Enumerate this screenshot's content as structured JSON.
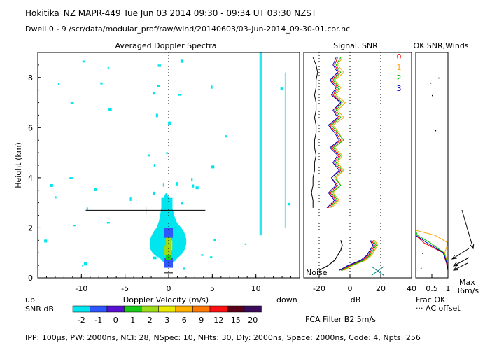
{
  "header": {
    "line1": "Hokitika_NZ   MAPR-449   Tue Jun 03 2014 09:30  -  09:34 UT 03:30 NZST",
    "line2": "Dwell   0  -   9    /scr/data/modular_prof/raw/wind/20140603/03-Jun-2014_09-30-01.cor.nc"
  },
  "footer": {
    "filter": "FCA Filter B2   5m/s",
    "params": "IPP: 100μs,   PW: 2000ns,   NCI:  28,   NSpec: 10,  NHts: 30,   Dly: 2000ns,   Space: 2000ns,   Code: 4,   Npts: 256"
  },
  "colorbar": {
    "label": "SNR dB",
    "labels": [
      "-2",
      "-1",
      "0",
      "1",
      "2",
      "3",
      "6",
      "9",
      "12",
      "15",
      "20"
    ],
    "colors": [
      "#00e5ee",
      "#2f55ff",
      "#5a10d0",
      "#19cc19",
      "#9cdc19",
      "#e8e800",
      "#ffb000",
      "#ff7800",
      "#ff1010",
      "#5a0018",
      "#3c0c5c"
    ]
  },
  "colors": {
    "signal": "#000000",
    "dwell1": "#ff0000",
    "dwell2": "#ffa500",
    "dwell3": "#00c000",
    "dwell4": "#0000c0",
    "spectrum": "#00e5ee"
  },
  "chart_data": [
    {
      "type": "heatmap",
      "title": "Averaged Doppler Spectra",
      "xlabel": "Doppler Velocity (m/s)",
      "ylabel": "Height (km)",
      "xlim": [
        -15,
        15
      ],
      "ylim": [
        0,
        9
      ],
      "xticks": [
        "-10",
        "-5",
        "0",
        "5",
        "10"
      ],
      "yticks": [
        "0",
        "2",
        "4",
        "6",
        "8"
      ],
      "left_label": "up",
      "right_label": "down",
      "mean_velocity_bar": {
        "height": 2.7,
        "x_from": -9.5,
        "x_to": 4.2,
        "center": -2.6
      },
      "intensity_core": [
        {
          "h": 0.6,
          "v": 0.0,
          "snr": "-1"
        },
        {
          "h": 0.9,
          "v": 0.0,
          "snr": "1"
        },
        {
          "h": 1.1,
          "v": -0.2,
          "snr": "2"
        },
        {
          "h": 1.3,
          "v": 0.1,
          "snr": "3"
        },
        {
          "h": 1.5,
          "v": 0.0,
          "snr": "1"
        },
        {
          "h": 1.8,
          "v": 0.0,
          "snr": "-1"
        },
        {
          "h": 2.4,
          "v": 0.0,
          "snr": "-2"
        },
        {
          "h": 3.0,
          "v": -0.2,
          "snr": "-2"
        }
      ]
    },
    {
      "type": "line",
      "title": "Signal, SNR",
      "xlabel": "dB",
      "xlim": [
        -30,
        40
      ],
      "ylim": [
        0,
        9
      ],
      "xticks": [
        "-20",
        "0",
        "20",
        "40"
      ],
      "series_labels": [
        "0",
        "1",
        "2",
        "3"
      ],
      "noise_label": "Noise",
      "y": [
        0.3,
        0.5,
        0.7,
        0.9,
        1.1,
        1.3,
        1.5,
        2.8,
        3.1,
        3.4,
        3.7,
        4.0,
        4.3,
        4.6,
        4.9,
        5.2,
        5.5,
        5.8,
        6.1,
        6.4,
        6.7,
        7.0,
        7.3,
        7.6,
        7.9,
        8.2,
        8.5,
        8.8
      ],
      "series": [
        {
          "name": "Signal",
          "values": [
            -20,
            -14,
            -10,
            -8,
            -6,
            -5,
            -6,
            -24,
            -24,
            -25,
            -24,
            -24,
            -23,
            -23,
            -22,
            -23,
            -23,
            -22,
            -22,
            -23,
            -22,
            -22,
            -23,
            -22,
            -22,
            -21,
            -22,
            -24
          ]
        },
        {
          "name": "0",
          "values": [
            -6,
            0,
            8,
            12,
            14,
            16,
            14,
            -14,
            -9,
            -13,
            -8,
            -12,
            -6,
            -10,
            -7,
            -12,
            -6,
            -9,
            -13,
            -7,
            -10,
            -6,
            -11,
            -8,
            -12,
            -7,
            -10,
            -8
          ]
        },
        {
          "name": "1",
          "values": [
            -4,
            2,
            10,
            14,
            16,
            18,
            16,
            -12,
            -7,
            -11,
            -6,
            -9,
            -4,
            -8,
            -5,
            -10,
            -5,
            -7,
            -11,
            -4,
            -8,
            -3,
            -9,
            -6,
            -10,
            -4,
            -8,
            -5
          ]
        },
        {
          "name": "2",
          "values": [
            -5,
            1,
            9,
            13,
            15,
            17,
            15,
            -13,
            -8,
            -12,
            -6,
            -10,
            -5,
            -9,
            -6,
            -11,
            -4,
            -8,
            -12,
            -6,
            -9,
            -5,
            -10,
            -7,
            -11,
            -6,
            -9,
            -6
          ]
        },
        {
          "name": "3",
          "values": [
            -7,
            -1,
            7,
            11,
            13,
            15,
            13,
            -15,
            -10,
            -14,
            -9,
            -12,
            -7,
            -11,
            -8,
            -13,
            -7,
            -10,
            -14,
            -8,
            -11,
            -6,
            -12,
            -9,
            -13,
            -8,
            -11,
            -9
          ]
        }
      ]
    },
    {
      "type": "line",
      "title": "OK SNR,Winds",
      "xlabel": "Frac OK",
      "xlim": [
        0,
        1
      ],
      "ylim": [
        0,
        9
      ],
      "xticks": [
        "0.5",
        "1"
      ],
      "offset_label": "AC offset",
      "wind_label": "Max",
      "wind_max": "36m/s",
      "y": [
        0.3,
        0.6,
        1.0,
        1.4,
        1.7,
        1.9,
        2.6,
        2.9
      ],
      "series": [
        {
          "name": "Frac OK 0",
          "values": [
            1.0,
            0.95,
            0.85,
            0.25,
            0.0,
            0.0,
            0.0,
            0.0
          ]
        },
        {
          "name": "Frac OK 1",
          "values": [
            1.0,
            0.98,
            0.9,
            1.0,
            0.6,
            0.0,
            0.0,
            0.0
          ]
        },
        {
          "name": "Frac OK 2",
          "values": [
            1.0,
            0.97,
            0.88,
            0.45,
            0.05,
            0.0,
            0.0,
            0.0
          ]
        },
        {
          "name": "Frac OK 3",
          "values": [
            1.0,
            0.96,
            0.86,
            0.35,
            0.0,
            0.0,
            0.0,
            0.0
          ]
        }
      ]
    }
  ]
}
